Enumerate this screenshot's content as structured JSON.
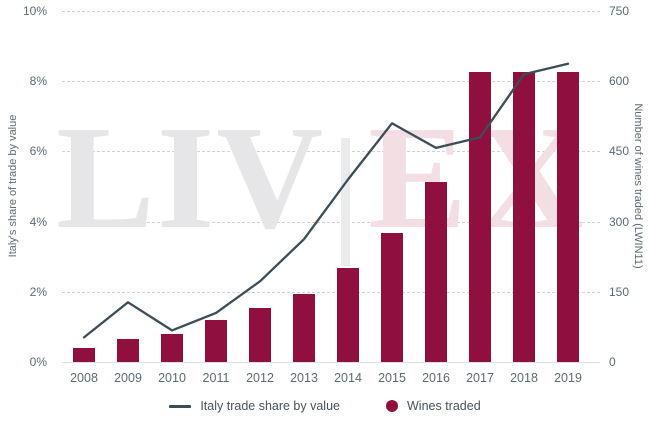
{
  "watermark": {
    "liv": "LIV",
    "ex": "EX"
  },
  "colors": {
    "bar": "#8f103f",
    "line": "#3b4d57",
    "grid": "#d2d2d2",
    "axis_baseline": "#d9dee3",
    "tick_text": "#5e6a73",
    "legend_text": "#47525a",
    "watermark_gray": "#e6e6e8",
    "watermark_pink": "#f3dee4"
  },
  "legend": {
    "items": [
      {
        "label": "Italy trade share by value",
        "swatch": "line",
        "color": "#3b4d57"
      },
      {
        "label": "Wines traded",
        "swatch": "circle",
        "color": "#8f103f"
      }
    ]
  },
  "chart_data": {
    "type": "bar",
    "subtype": "combo-bar-line-dual-axis",
    "title": "",
    "categories": [
      "2008",
      "2009",
      "2010",
      "2011",
      "2012",
      "2013",
      "2014",
      "2015",
      "2016",
      "2017",
      "2018",
      "2019"
    ],
    "series": [
      {
        "name": "Italy trade share by value",
        "type": "line",
        "axis": "left",
        "color": "#3b4d57",
        "values": [
          0.7,
          1.7,
          0.9,
          1.4,
          2.3,
          3.5,
          5.2,
          6.8,
          6.1,
          6.4,
          8.2,
          8.5
        ]
      },
      {
        "name": "Wines traded",
        "type": "bar",
        "axis": "right",
        "color": "#8f103f",
        "values": [
          30,
          50,
          60,
          90,
          115,
          145,
          200,
          275,
          385,
          620,
          620,
          620
        ]
      }
    ],
    "left_axis": {
      "label": "Italy's share of trade by value",
      "min": 0,
      "max": 10,
      "tick_values": [
        0,
        2,
        4,
        6,
        8,
        10
      ],
      "tick_labels": [
        "0%",
        "2%",
        "4%",
        "6%",
        "8%",
        "10%"
      ]
    },
    "right_axis": {
      "label": "Number of wines traded (LWIN11)",
      "min": 0,
      "max": 750,
      "tick_values": [
        0,
        150,
        300,
        450,
        600,
        750
      ],
      "tick_labels": [
        "0",
        "150",
        "300",
        "450",
        "600",
        "750"
      ]
    },
    "grid": "horizontal-dashed",
    "legend_position": "bottom"
  }
}
